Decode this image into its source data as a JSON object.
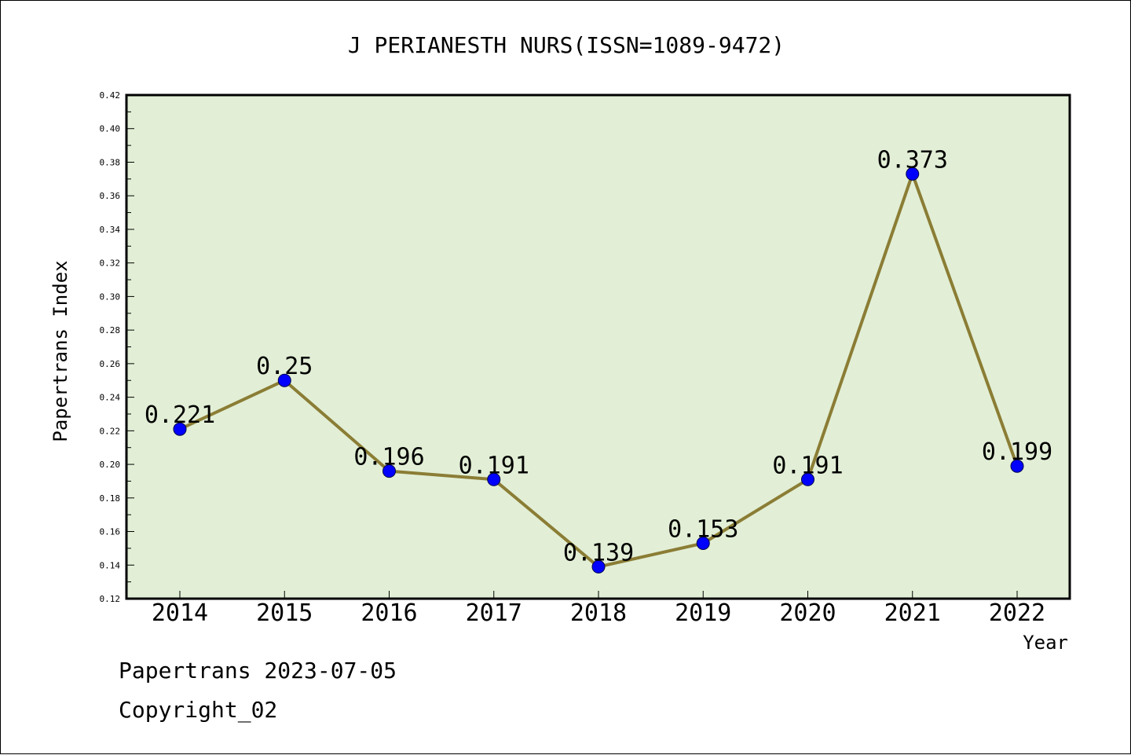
{
  "chart_data": {
    "type": "line",
    "title": "J PERIANESTH NURS(ISSN=1089-9472)",
    "xlabel": "Year",
    "ylabel": "Papertrans Index",
    "categories": [
      "2014",
      "2015",
      "2016",
      "2017",
      "2018",
      "2019",
      "2020",
      "2021",
      "2022"
    ],
    "values": [
      0.221,
      0.25,
      0.196,
      0.191,
      0.139,
      0.153,
      0.191,
      0.373,
      0.199
    ],
    "data_labels": [
      "0.221",
      "0.25",
      "0.196",
      "0.191",
      "0.139",
      "0.153",
      "0.191",
      "0.373",
      "0.199"
    ],
    "ylim": [
      0.12,
      0.42
    ],
    "yticks": [
      "0.12",
      "0.14",
      "0.16",
      "0.18",
      "0.20",
      "0.22",
      "0.24",
      "0.26",
      "0.28",
      "0.30",
      "0.32",
      "0.34",
      "0.36",
      "0.38",
      "0.40",
      "0.42"
    ],
    "grid": false,
    "legend": "none",
    "colors": {
      "plot_background": "#e2efd6",
      "line": "#8b7d35",
      "marker": "#0000ff"
    }
  },
  "footer": {
    "line1": "Papertrans 2023-07-05",
    "line2": "Copyright_02"
  }
}
